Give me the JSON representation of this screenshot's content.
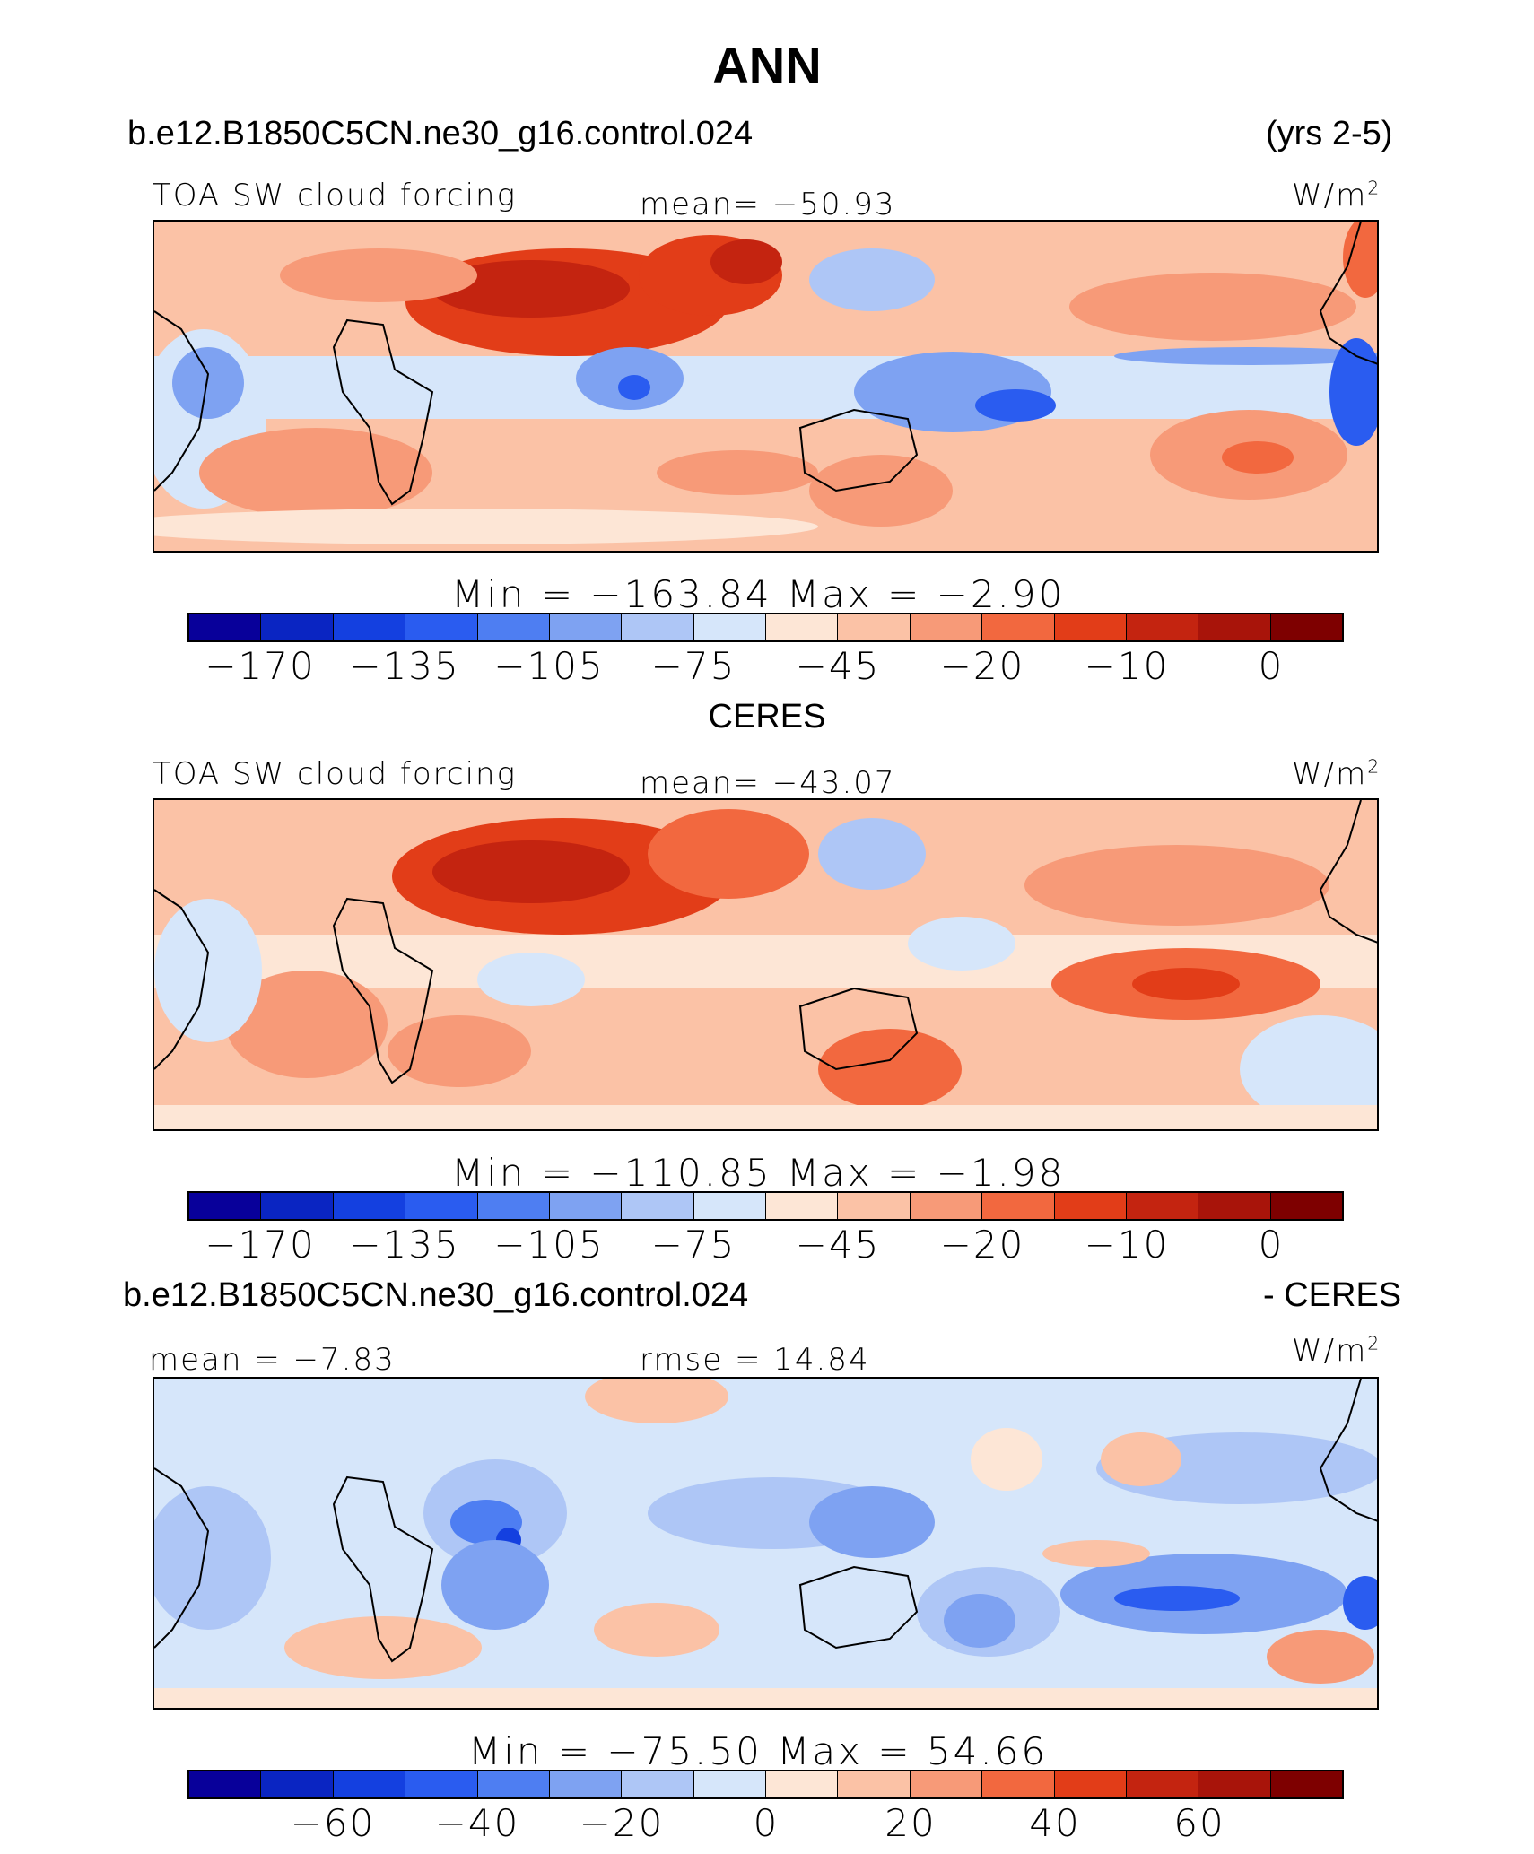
{
  "title": "ANN",
  "case_name": "b.e12.B1850C5CN.ne30_g16.control.024",
  "years": "(yrs 2-5)",
  "obs_title": "CERES",
  "diff_title_left": "b.e12.B1850C5CN.ne30_g16.control.024",
  "diff_title_right": "- CERES",
  "panels": [
    {
      "variable": "TOA SW cloud forcing",
      "stat": "mean=  −50.93",
      "units_base": "W/m",
      "units_exp": "2",
      "minmax": "Min  =  −163.84  Max  =   −2.90",
      "tick_labels": [
        "−170",
        "−135",
        "−105",
        "−75",
        "−45",
        "−20",
        "−10",
        "0"
      ]
    },
    {
      "variable": "TOA SW cloud forcing",
      "stat": "mean=  −43.07",
      "units_base": "W/m",
      "units_exp": "2",
      "minmax": "Min  =  −110.85  Max  =   −1.98",
      "tick_labels": [
        "−170",
        "−135",
        "−105",
        "−75",
        "−45",
        "−20",
        "−10",
        "0"
      ]
    },
    {
      "stat_left": "mean  =   −7.83",
      "stat": "rmse  =   14.84",
      "units_base": "W/m",
      "units_exp": "2",
      "minmax": "Min  =  −75.50  Max  =    54.66",
      "tick_labels": [
        "−60",
        "−40",
        "−20",
        "0",
        "20",
        "40",
        "60"
      ]
    }
  ],
  "colors": {
    "palette": [
      "#08009a",
      "#0a25c2",
      "#1440e0",
      "#2a5cf0",
      "#4e7ef2",
      "#7ea2f2",
      "#aec6f6",
      "#d6e6fa",
      "#fde6d6",
      "#fbc2a6",
      "#f79a78",
      "#f2683f",
      "#e23d18",
      "#c42410",
      "#a8140a",
      "#7e0000"
    ]
  }
}
